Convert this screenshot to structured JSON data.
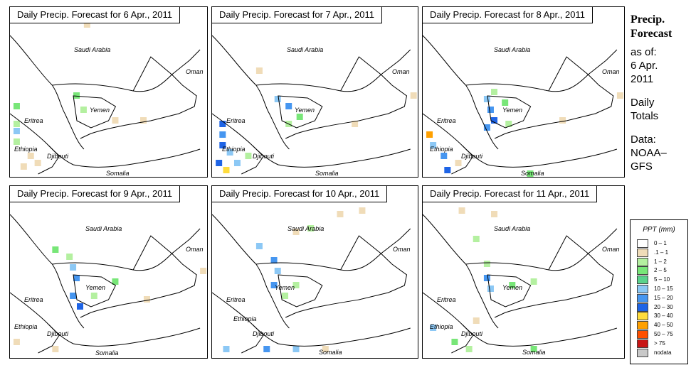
{
  "panels": [
    {
      "title": "Daily Precip. Forecast for  6 Apr., 2011"
    },
    {
      "title": "Daily Precip. Forecast for  7 Apr., 2011"
    },
    {
      "title": "Daily Precip. Forecast for  8 Apr., 2011"
    },
    {
      "title": "Daily Precip. Forecast for  9 Apr., 2011"
    },
    {
      "title": "Daily Precip. Forecast for  10 Apr., 2011"
    },
    {
      "title": "Daily Precip. Forecast for  11 Apr., 2011"
    }
  ],
  "labels": {
    "saudi": "Saudi Arabia",
    "oman": "Oman",
    "yemen": "Yemen",
    "eritrea": "Eritrea",
    "ethiopia": "Ethiopia",
    "djibouti": "Djibouti",
    "somalia": "Somalia"
  },
  "sidebar": {
    "title_line1": "Precip.",
    "title_line2": "Forecast",
    "asof": "as of:",
    "date_line1": "6 Apr.",
    "date_line2": "2011",
    "daily_line1": "Daily",
    "daily_line2": "Totals",
    "data_line1": "Data:",
    "data_line2": "NOAA–",
    "data_line3": "GFS"
  },
  "legend": {
    "title": "PPT (mm)",
    "items": [
      {
        "label": "0 – 1",
        "color": "#ffffff"
      },
      {
        "label": ".1 – 1",
        "color": "#f0dcb8"
      },
      {
        "label": "1 – 2",
        "color": "#b4f0a0"
      },
      {
        "label": "2 – 5",
        "color": "#78e678"
      },
      {
        "label": "5 – 10",
        "color": "#5ad28c"
      },
      {
        "label": "10 – 15",
        "color": "#8cc8f5"
      },
      {
        "label": "15 – 20",
        "color": "#4696f0"
      },
      {
        "label": "20 – 30",
        "color": "#1e64e6"
      },
      {
        "label": "30 – 40",
        "color": "#ffdc3c"
      },
      {
        "label": "40 – 50",
        "color": "#ffa000"
      },
      {
        "label": "50 – 75",
        "color": "#ff5000"
      },
      {
        "label": "> 75",
        "color": "#c81414"
      },
      {
        "label": "nodata",
        "color": "#c8c8c8"
      }
    ]
  }
}
